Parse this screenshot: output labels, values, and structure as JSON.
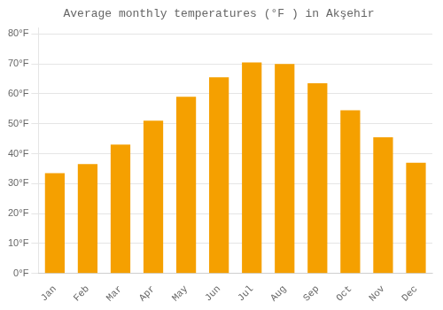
{
  "chart_data": {
    "type": "bar",
    "title": "Average monthly temperatures (°F ) in Akşehir",
    "categories": [
      "Jan",
      "Feb",
      "Mar",
      "Apr",
      "May",
      "Jun",
      "Jul",
      "Aug",
      "Sep",
      "Oct",
      "Nov",
      "Dec"
    ],
    "values": [
      33.5,
      36.5,
      43,
      51,
      59,
      65.5,
      70.5,
      70,
      63.5,
      54.5,
      45.5,
      37
    ],
    "color": "#F5A000",
    "ylim": [
      0,
      82
    ],
    "yticks": [
      {
        "value": 0,
        "label": "0°F"
      },
      {
        "value": 10,
        "label": "10°F"
      },
      {
        "value": 20,
        "label": "20°F"
      },
      {
        "value": 30,
        "label": "30°F"
      },
      {
        "value": 40,
        "label": "40°F"
      },
      {
        "value": 50,
        "label": "50°F"
      },
      {
        "value": 60,
        "label": "60°F"
      },
      {
        "value": 70,
        "label": "70°F"
      },
      {
        "value": 80,
        "label": "80°F"
      }
    ],
    "grid": true
  }
}
